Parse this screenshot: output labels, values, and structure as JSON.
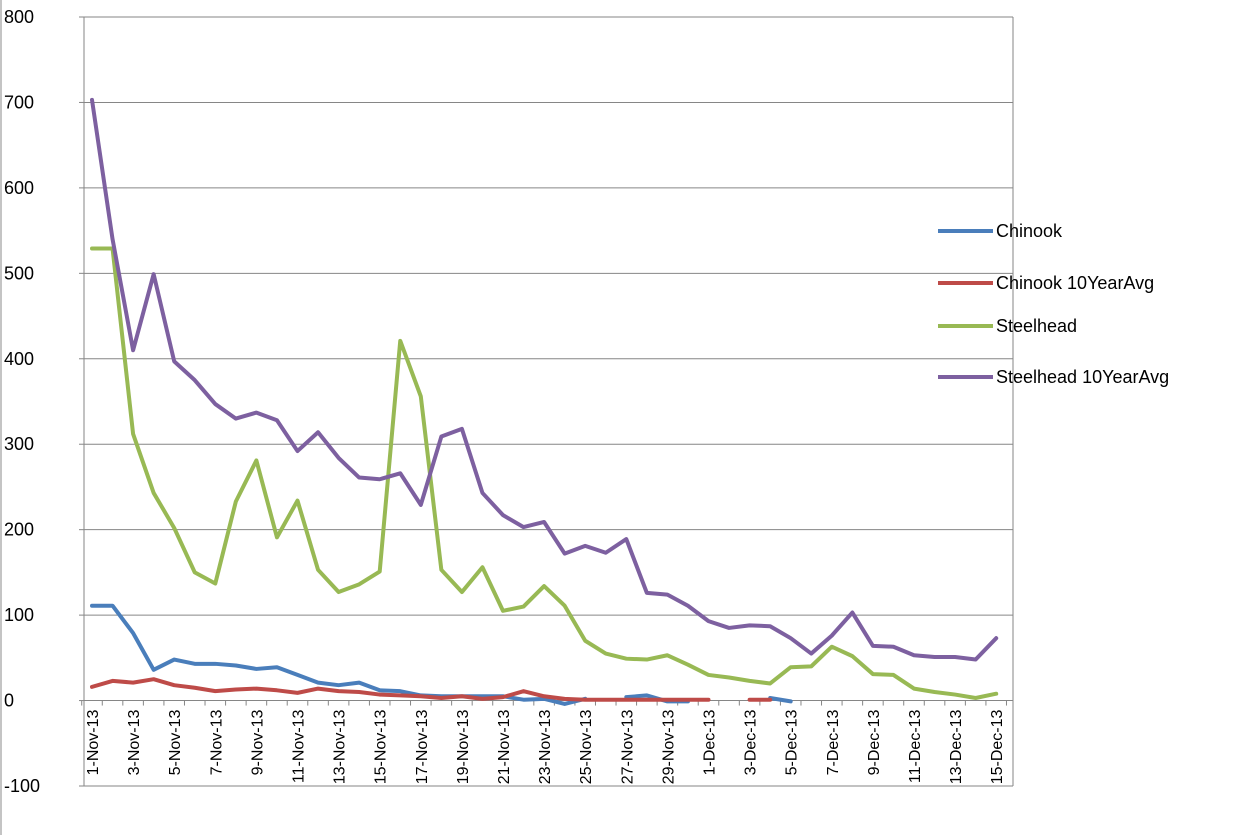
{
  "chart_data": {
    "type": "line",
    "title": "",
    "xlabel": "",
    "ylabel": "",
    "ylim": [
      -100,
      800
    ],
    "yticks": [
      -100,
      0,
      100,
      200,
      300,
      400,
      500,
      600,
      700,
      800
    ],
    "grid": true,
    "legend_position": "right",
    "x": [
      "1-Nov-13",
      "2-Nov-13",
      "3-Nov-13",
      "4-Nov-13",
      "5-Nov-13",
      "6-Nov-13",
      "7-Nov-13",
      "8-Nov-13",
      "9-Nov-13",
      "10-Nov-13",
      "11-Nov-13",
      "12-Nov-13",
      "13-Nov-13",
      "14-Nov-13",
      "15-Nov-13",
      "16-Nov-13",
      "17-Nov-13",
      "18-Nov-13",
      "19-Nov-13",
      "20-Nov-13",
      "21-Nov-13",
      "22-Nov-13",
      "23-Nov-13",
      "24-Nov-13",
      "25-Nov-13",
      "26-Nov-13",
      "27-Nov-13",
      "28-Nov-13",
      "29-Nov-13",
      "30-Nov-13",
      "1-Dec-13",
      "2-Dec-13",
      "3-Dec-13",
      "4-Dec-13",
      "5-Dec-13",
      "6-Dec-13",
      "7-Dec-13",
      "8-Dec-13",
      "9-Dec-13",
      "10-Dec-13",
      "11-Dec-13",
      "12-Dec-13",
      "13-Dec-13",
      "14-Dec-13",
      "15-Dec-13"
    ],
    "x_tick_labels": [
      "1-Nov-13",
      "3-Nov-13",
      "5-Nov-13",
      "7-Nov-13",
      "9-Nov-13",
      "11-Nov-13",
      "13-Nov-13",
      "15-Nov-13",
      "17-Nov-13",
      "19-Nov-13",
      "21-Nov-13",
      "23-Nov-13",
      "25-Nov-13",
      "27-Nov-13",
      "29-Nov-13",
      "1-Dec-13",
      "3-Dec-13",
      "5-Dec-13",
      "7-Dec-13",
      "9-Dec-13",
      "11-Dec-13",
      "13-Dec-13",
      "15-Dec-13"
    ],
    "series": [
      {
        "name": "Chinook",
        "color": "#4a7ebb",
        "values": [
          111,
          111,
          79,
          36,
          48,
          43,
          43,
          41,
          37,
          39,
          30,
          21,
          18,
          21,
          12,
          11,
          6,
          5,
          5,
          5,
          5,
          1,
          2,
          -4,
          2,
          null,
          4,
          6,
          -1,
          -1,
          null,
          null,
          null,
          3,
          -1,
          null,
          null,
          null,
          null,
          null,
          null,
          null,
          null,
          null,
          null
        ]
      },
      {
        "name": "Chinook 10YearAvg",
        "color": "#be4b48",
        "values": [
          16,
          23,
          21,
          25,
          18,
          15,
          11,
          13,
          14,
          12,
          9,
          14,
          11,
          10,
          7,
          6,
          5,
          3,
          5,
          2,
          4,
          11,
          5,
          2,
          1,
          1,
          1,
          1,
          1,
          1,
          1,
          null,
          1,
          1,
          null,
          null,
          null,
          null,
          null,
          null,
          null,
          null,
          null,
          null,
          null
        ]
      },
      {
        "name": "Steelhead",
        "color": "#98b954",
        "values": [
          529,
          529,
          312,
          243,
          202,
          150,
          137,
          233,
          281,
          191,
          234,
          153,
          127,
          136,
          151,
          421,
          356,
          153,
          127,
          156,
          105,
          110,
          134,
          111,
          70,
          55,
          49,
          48,
          53,
          42,
          30,
          27,
          23,
          20,
          39,
          40,
          63,
          52,
          31,
          30,
          14,
          10,
          7,
          3,
          8
        ]
      },
      {
        "name": "Steelhead 10YearAvg",
        "color": "#7d60a0",
        "values": [
          703,
          540,
          410,
          499,
          397,
          375,
          347,
          330,
          337,
          328,
          292,
          314,
          284,
          261,
          259,
          266,
          229,
          309,
          318,
          243,
          217,
          203,
          209,
          172,
          181,
          173,
          189,
          126,
          124,
          111,
          93,
          85,
          88,
          87,
          73,
          55,
          76,
          103,
          64,
          63,
          53,
          51,
          51,
          48,
          73
        ]
      }
    ]
  }
}
